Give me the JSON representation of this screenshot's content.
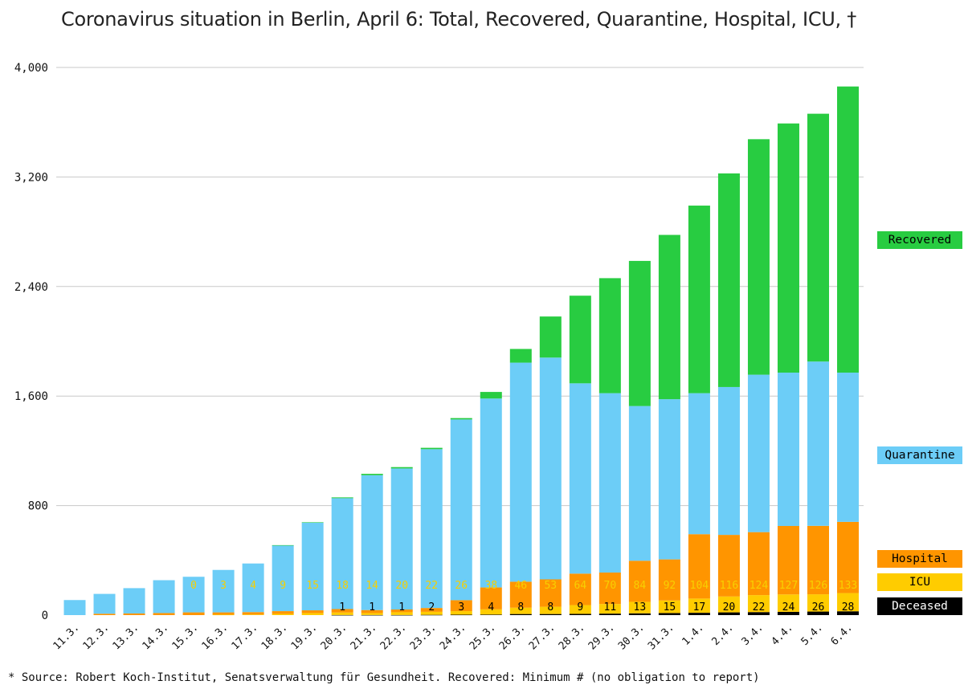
{
  "title": "Coronavirus situation in Berlin, April 6: Total, Recovered, Quarantine, Hospital, ICU, †",
  "footnote": "* Source: Robert Koch-Institut, Senatsverwaltung für Gesundheit. Recovered: Minimum # (no obligation to report)",
  "colors": {
    "recovered": "#28cc41",
    "quarantine": "#6ccdf7",
    "hospital": "#ff9500",
    "icu": "#ffcc00",
    "deceased": "#000000",
    "icu_label": "#f7d000",
    "grid": "#c8c8c8"
  },
  "legend": {
    "recovered": "Recovered",
    "quarantine": "Quarantine",
    "hospital": "Hospital",
    "icu": "ICU",
    "deceased": "Deceased"
  },
  "chart_data": {
    "type": "bar",
    "stacked": true,
    "ylim": [
      0,
      4000
    ],
    "yticks": [
      0,
      800,
      1600,
      2400,
      3200,
      4000
    ],
    "ytick_labels": [
      "0",
      "800",
      "1,600",
      "2,400",
      "3,200",
      "4,000"
    ],
    "grid": true,
    "legend_position": "right",
    "categories": [
      "11.3.",
      "12.3.",
      "13.3.",
      "14.3.",
      "15.3.",
      "16.3.",
      "17.3.",
      "18.3.",
      "19.3.",
      "20.3.",
      "21.3.",
      "22.3.",
      "23.3.",
      "24.3.",
      "25.3.",
      "26.3.",
      "27.3.",
      "28.3.",
      "29.3.",
      "30.3.",
      "31.3.",
      "1.4.",
      "2.4.",
      "3.4.",
      "4.4.",
      "5.4.",
      "6.4."
    ],
    "series": [
      {
        "name": "Deceased",
        "color_key": "deceased",
        "values": [
          0,
          0,
          0,
          0,
          0,
          0,
          0,
          0,
          0,
          1,
          1,
          1,
          2,
          3,
          4,
          8,
          8,
          9,
          11,
          13,
          15,
          17,
          20,
          22,
          24,
          26,
          28
        ]
      },
      {
        "name": "ICU",
        "color_key": "icu",
        "values": [
          0,
          0,
          0,
          0,
          0,
          3,
          4,
          9,
          15,
          18,
          14,
          20,
          22,
          26,
          38,
          46,
          53,
          64,
          70,
          84,
          92,
          104,
          116,
          124,
          127,
          126,
          133
        ]
      },
      {
        "name": "Hospital",
        "color_key": "hospital",
        "values": [
          0,
          10,
          12,
          15,
          20,
          17,
          18,
          20,
          20,
          25,
          22,
          20,
          28,
          80,
          160,
          190,
          200,
          230,
          230,
          300,
          300,
          470,
          450,
          460,
          500,
          500,
          520
        ]
      },
      {
        "name": "Quarantine",
        "color_key": "quarantine",
        "values": [
          110,
          145,
          185,
          240,
          260,
          310,
          355,
          480,
          640,
          810,
          985,
          1030,
          1160,
          1320,
          1380,
          1600,
          1620,
          1390,
          1310,
          1130,
          1170,
          1030,
          1080,
          1150,
          1120,
          1200,
          1090
        ]
      },
      {
        "name": "Recovered",
        "color_key": "recovered",
        "values": [
          0,
          0,
          0,
          0,
          0,
          0,
          0,
          2,
          3,
          6,
          10,
          10,
          10,
          10,
          48,
          100,
          300,
          640,
          840,
          1060,
          1200,
          1370,
          1560,
          1720,
          1820,
          1810,
          2090
        ]
      }
    ],
    "deceased_labels": [
      "",
      "",
      "",
      "",
      "",
      "",
      "",
      "",
      "",
      "1",
      "1",
      "1",
      "2",
      "3",
      "4",
      "8",
      "8",
      "9",
      "11",
      "13",
      "15",
      "17",
      "20",
      "22",
      "24",
      "26",
      "28"
    ],
    "icu_labels": [
      "",
      "",
      "",
      "",
      "0",
      "3",
      "4",
      "9",
      "15",
      "18",
      "14",
      "20",
      "22",
      "26",
      "38",
      "46",
      "53",
      "64",
      "70",
      "84",
      "92",
      "104",
      "116",
      "124",
      "127",
      "126",
      "133"
    ]
  }
}
